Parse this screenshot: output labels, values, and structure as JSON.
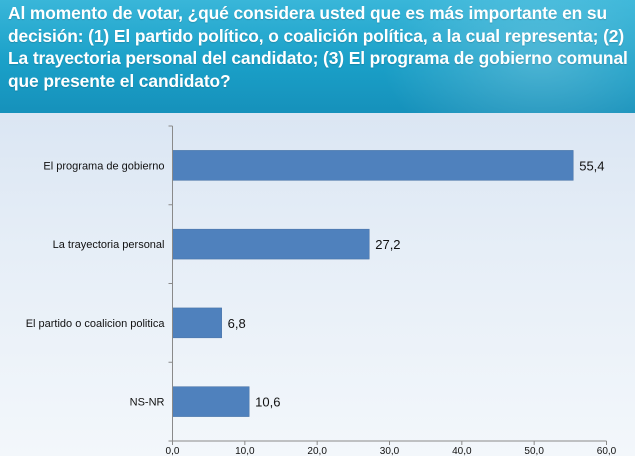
{
  "header": {
    "question": "Al momento de votar, ¿qué considera usted que es más importante en su decisión: (1) El partido político, o coalición política, a la cual representa; (2) La trayectoria personal del candidato; (3) El programa de gobierno comunal  que presente el candidato?"
  },
  "colors": {
    "bar": "#4f81bd",
    "header": "#1aa0c8"
  },
  "chart_data": {
    "type": "bar",
    "orientation": "horizontal",
    "title": "",
    "xlabel": "",
    "ylabel": "",
    "categories": [
      "El programa de gobierno",
      "La trayectoria personal",
      "El partido o coalicion politica",
      "NS-NR"
    ],
    "values": [
      55.4,
      27.2,
      6.8,
      10.6
    ],
    "value_labels": [
      "55,4",
      "27,2",
      "6,8",
      "10,6"
    ],
    "xlim": [
      0,
      60
    ],
    "ticks": [
      0,
      10,
      20,
      30,
      40,
      50,
      60
    ],
    "tick_labels": [
      "0,0",
      "10,0",
      "20,0",
      "30,0",
      "40,0",
      "50,0",
      "60,0"
    ],
    "grid": false,
    "legend": "none"
  }
}
